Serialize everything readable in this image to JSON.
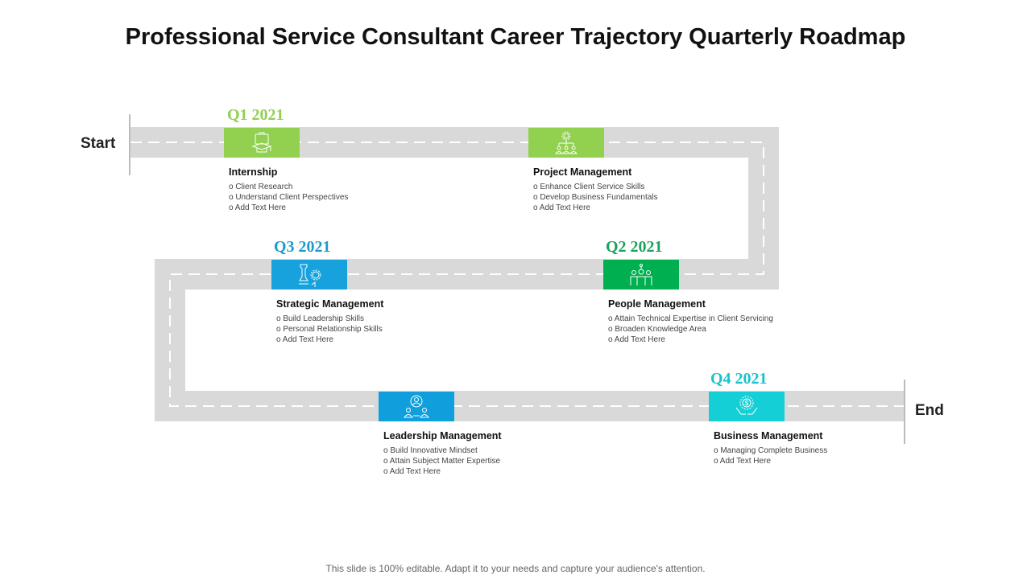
{
  "title": "Professional Service Consultant Career Trajectory Quarterly Roadmap",
  "start_label": "Start",
  "end_label": "End",
  "footer": "This slide is 100% editable. Adapt it to your needs and capture your audience's attention.",
  "milestones": [
    {
      "quarter": "Q1 2021",
      "heading": "Internship",
      "bullets": [
        "o Client Research",
        "o Understand Client  Perspectives",
        "o Add Text Here"
      ],
      "color": "#92d050",
      "icon": "briefcase-graduation-icon"
    },
    {
      "quarter": "",
      "heading": "Project Management",
      "bullets": [
        "o Enhance Client  Service Skills",
        "o Develop Business Fundamentals",
        "o Add Text Here"
      ],
      "color": "#92d050",
      "icon": "gear-hierarchy-icon"
    },
    {
      "quarter": "Q2 2021",
      "heading": "People Management",
      "bullets": [
        "o Attain Technical Expertise in Client  Servicing",
        "o Broaden Knowledge Area",
        "o Add Text Here"
      ],
      "color": "#00b050",
      "icon": "team-network-icon"
    },
    {
      "quarter": "Q3 2021",
      "heading": "Strategic Management",
      "bullets": [
        "o Build Leadership Skills",
        "o Personal Relationship  Skills",
        "o Add Text Here"
      ],
      "color": "#17a2de",
      "icon": "chess-gear-icon"
    },
    {
      "quarter": "",
      "heading": "Leadership Management",
      "bullets": [
        "o Build Innovative Mindset",
        "o Attain Subject Matter Expertise",
        "o Add Text Here"
      ],
      "color": "#0f9fdc",
      "icon": "leader-team-icon"
    },
    {
      "quarter": "Q4 2021",
      "heading": "Business  Management",
      "bullets": [
        "o Managing Complete Business",
        "o Add Text Here"
      ],
      "color": "#14d0d6",
      "icon": "dollar-hands-icon"
    }
  ],
  "quarter_colors": {
    "q1": "#92d050",
    "q2": "#1aa35a",
    "q3": "#1a9bd0",
    "q4": "#18c4cc"
  }
}
